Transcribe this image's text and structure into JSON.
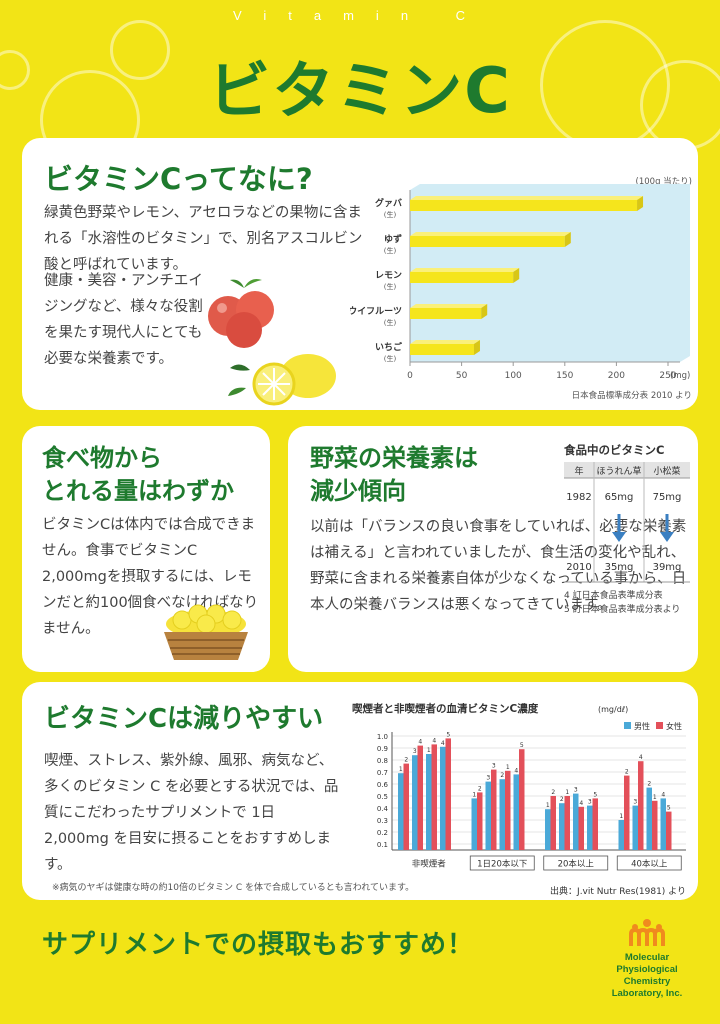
{
  "header": {
    "top_label": "Vitamin C",
    "title": "ビタミンC"
  },
  "section1": {
    "heading": "ビタミンCってなに?",
    "para1": "緑黄色野菜やレモン、アセロラなどの果物に含まれる「水溶性のビタミン」で、別名アスコルビン酸と呼ばれています。",
    "para2": "健康・美容・アンチエイジングなど、様々な役割を果たす現代人にとても必要な栄養素です。",
    "chart_unit_note": "(100g 当たり)",
    "chart_source": "日本食品標準成分表 2010 より",
    "raw_mark": "(生)",
    "unit": "(mg)"
  },
  "section2": {
    "heading_line1": "食べ物から",
    "heading_line2": "とれる量はわずか",
    "body": "ビタミンCは体内では合成できません。食事でビタミンC 2,000mgを摂取するには、レモンだと約100個食べなければなりません。"
  },
  "section3": {
    "heading_line1": "野菜の栄養素は",
    "heading_line2": "減少傾向",
    "body": "以前は「バランスの良い食事をしていれば、必要な栄養素は補える」と言われていましたが、食生活の変化や乱れ、野菜に含まれる栄養素自体が少なくなっている事から、日本人の栄養バランスは悪くなってきています。",
    "table": {
      "title": "食品中のビタミンC",
      "headers": [
        "年",
        "ほうれん草",
        "小松菜"
      ],
      "rows": [
        [
          "1982",
          "65mg",
          "75mg"
        ],
        [
          "2010",
          "35mg",
          "39mg"
        ]
      ],
      "note1": "4 訂日本食品表準成分表",
      "note2": "5 訂日本食品表準成分表より"
    }
  },
  "section4": {
    "heading": "ビタミンCは減りやすい",
    "body": "喫煙、ストレス、紫外線、風邪、病気など、多くのビタミン C を必要とする状況では、品質にこだわったサプリメントで 1日 2,000mg を目安に摂ることをおすすめします。",
    "footnote": "※病気のヤギは健康な時の約10倍のビタミン C を体で合成しているとも言われています。",
    "chart_source": "出典：J.vit Nutr Res(1981) より"
  },
  "footer": {
    "slogan": "サプリメントでの摂取もおすすめ！",
    "logo_line1": "Molecular",
    "logo_line2": "Physiological Chemistry",
    "logo_line3": "Laboratory, Inc."
  },
  "colors": {
    "background": "#f2e416",
    "heading_green": "#1e7a2e",
    "bar_yellow": "#f5e51c",
    "chart_bg": "#d2ecf5",
    "male_blue": "#4aa9d8",
    "female_red": "#e3505a"
  },
  "chart_data": [
    {
      "type": "bar",
      "orientation": "horizontal",
      "categories": [
        "グァバ",
        "ゆず",
        "レモン",
        "キウイフルーツ",
        "いちご"
      ],
      "values": [
        220,
        150,
        100,
        69,
        62
      ],
      "xlim": [
        0,
        250
      ],
      "xticks": [
        0,
        50,
        100,
        150,
        200,
        250
      ]
    },
    {
      "type": "bar",
      "title": "喫煙者と非喫煙者の血清ビタミンC濃度",
      "unit": "(mg/dℓ)",
      "ylim": [
        0.1,
        1.0
      ],
      "yticks": [
        "1.0",
        "0.9",
        "0.8",
        "0.7",
        "0.6",
        "0.5",
        "0.4",
        "0.3",
        "0.2",
        "0.1"
      ],
      "legend": [
        "男性",
        "女性"
      ],
      "legend_position": "top-right",
      "groups": [
        {
          "label": "非喫煙者",
          "pairs": [
            {
              "male": 0.69,
              "female": 0.77,
              "male_label": "1",
              "female_label": "2"
            },
            {
              "male": 0.84,
              "female": 0.92,
              "male_label": "3",
              "female_label": "4"
            },
            {
              "male": 0.85,
              "female": 0.93,
              "male_label": "1",
              "female_label": "4"
            },
            {
              "male": 0.91,
              "female": 0.98,
              "male_label": "4",
              "female_label": "5"
            }
          ]
        },
        {
          "label": "1日20本以下",
          "pairs": [
            {
              "male": 0.48,
              "female": 0.53,
              "male_label": "1",
              "female_label": "2"
            },
            {
              "male": 0.62,
              "female": 0.72,
              "male_label": "3",
              "female_label": "3"
            },
            {
              "male": 0.64,
              "female": 0.71,
              "male_label": "2",
              "female_label": "1"
            },
            {
              "male": 0.68,
              "female": 0.89,
              "male_label": "4",
              "female_label": "5"
            }
          ]
        },
        {
          "label": "20本以上",
          "pairs": [
            {
              "male": 0.39,
              "female": 0.5,
              "male_label": "1",
              "female_label": "2"
            },
            {
              "male": 0.44,
              "female": 0.5,
              "male_label": "2",
              "female_label": "1"
            },
            {
              "male": 0.52,
              "female": 0.41,
              "male_label": "3",
              "female_label": "4"
            },
            {
              "male": 0.42,
              "female": 0.48,
              "male_label": "3",
              "female_label": "5"
            }
          ]
        },
        {
          "label": "40本以上",
          "pairs": [
            {
              "male": 0.3,
              "female": 0.67,
              "male_label": "1",
              "female_label": "2"
            },
            {
              "male": 0.42,
              "female": 0.79,
              "male_label": "3",
              "female_label": "4"
            },
            {
              "male": 0.57,
              "female": 0.46,
              "male_label": "2",
              "female_label": "1"
            },
            {
              "male": 0.48,
              "female": 0.37,
              "male_label": "4",
              "female_label": "5"
            }
          ]
        }
      ]
    }
  ]
}
